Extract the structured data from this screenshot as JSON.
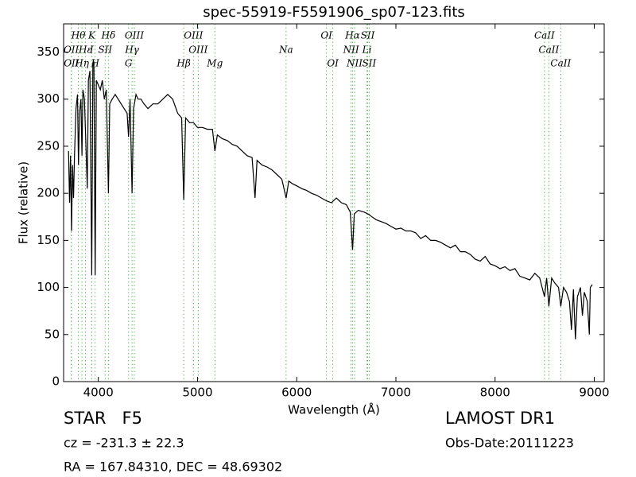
{
  "chart_data": {
    "type": "line",
    "title": "spec-55919-F5591906_sp07-123.fits",
    "xlabel": "Wavelength (Å)",
    "ylabel": "Flux (relative)",
    "color": "#000000",
    "line_color": "#66bb66",
    "xlim": [
      3650,
      9100
    ],
    "ylim": [
      0,
      380
    ],
    "xticks": [
      4000,
      5000,
      6000,
      7000,
      8000,
      9000
    ],
    "yticks": [
      0,
      50,
      100,
      150,
      200,
      250,
      300,
      350
    ],
    "x": [
      3700,
      3710,
      3720,
      3730,
      3740,
      3750,
      3760,
      3775,
      3790,
      3800,
      3810,
      3825,
      3835,
      3845,
      3860,
      3875,
      3889,
      3900,
      3915,
      3934,
      3945,
      3955,
      3968,
      3980,
      4000,
      4020,
      4040,
      4060,
      4080,
      4102,
      4115,
      4140,
      4170,
      4200,
      4230,
      4260,
      4290,
      4305,
      4320,
      4340,
      4355,
      4380,
      4400,
      4430,
      4460,
      4500,
      4550,
      4600,
      4650,
      4700,
      4750,
      4800,
      4840,
      4861,
      4880,
      4920,
      4960,
      5000,
      5050,
      5100,
      5150,
      5175,
      5200,
      5250,
      5300,
      5350,
      5400,
      5450,
      5500,
      5550,
      5580,
      5600,
      5650,
      5700,
      5750,
      5800,
      5850,
      5893,
      5920,
      5960,
      6000,
      6050,
      6100,
      6150,
      6200,
      6250,
      6300,
      6350,
      6400,
      6450,
      6500,
      6540,
      6563,
      6580,
      6620,
      6680,
      6720,
      6760,
      6800,
      6850,
      6900,
      6950,
      7000,
      7050,
      7100,
      7150,
      7200,
      7250,
      7300,
      7350,
      7400,
      7450,
      7500,
      7550,
      7600,
      7650,
      7700,
      7750,
      7800,
      7850,
      7900,
      7950,
      8000,
      8050,
      8100,
      8150,
      8200,
      8250,
      8300,
      8350,
      8400,
      8450,
      8498,
      8520,
      8542,
      8570,
      8600,
      8640,
      8662,
      8690,
      8720,
      8750,
      8770,
      8790,
      8810,
      8830,
      8860,
      8880,
      8900,
      8930,
      8950,
      8960,
      8980
    ],
    "values": [
      245,
      190,
      240,
      160,
      230,
      195,
      240,
      290,
      305,
      230,
      285,
      300,
      240,
      310,
      300,
      250,
      205,
      320,
      330,
      113,
      335,
      340,
      113,
      320,
      315,
      310,
      320,
      300,
      310,
      200,
      295,
      300,
      305,
      300,
      295,
      290,
      285,
      260,
      300,
      200,
      290,
      305,
      300,
      300,
      295,
      290,
      295,
      295,
      300,
      305,
      300,
      285,
      280,
      193,
      280,
      275,
      275,
      270,
      270,
      268,
      268,
      245,
      262,
      258,
      256,
      252,
      250,
      245,
      240,
      238,
      195,
      235,
      230,
      228,
      225,
      220,
      215,
      195,
      213,
      210,
      208,
      205,
      203,
      200,
      198,
      195,
      192,
      190,
      195,
      190,
      188,
      180,
      140,
      178,
      182,
      180,
      178,
      175,
      172,
      170,
      168,
      165,
      162,
      163,
      160,
      160,
      158,
      152,
      155,
      150,
      150,
      148,
      145,
      142,
      145,
      138,
      138,
      135,
      130,
      128,
      133,
      125,
      123,
      120,
      122,
      118,
      120,
      112,
      110,
      108,
      115,
      110,
      90,
      110,
      80,
      110,
      105,
      100,
      80,
      100,
      95,
      85,
      55,
      98,
      45,
      90,
      100,
      70,
      95,
      85,
      50,
      100,
      103
    ],
    "line_labels": [
      [
        {
          "label": "Hθ",
          "wavelength": 3798
        },
        {
          "label": "K",
          "wavelength": 3934
        },
        {
          "label": "Hδ",
          "wavelength": 4102
        },
        {
          "label": "OIII",
          "wavelength": 4363
        },
        {
          "label": "OIII",
          "wavelength": 4959
        },
        {
          "label": "OI",
          "wavelength": 6300
        },
        {
          "label": "Hα",
          "wavelength": 6563
        },
        {
          "label": "SII",
          "wavelength": 6716
        },
        {
          "label": "CaII",
          "wavelength": 8498
        }
      ],
      [
        {
          "label": "OII",
          "wavelength": 3727
        },
        {
          "label": "Hε",
          "wavelength": 3870
        },
        {
          "label": "I",
          "wavelength": 3933
        },
        {
          "label": "SII",
          "wavelength": 4069
        },
        {
          "label": "Hγ",
          "wavelength": 4340
        },
        {
          "label": "OIII",
          "wavelength": 5007
        },
        {
          "label": "Na",
          "wavelength": 5893
        },
        {
          "label": "NII",
          "wavelength": 6548
        },
        {
          "label": "Li",
          "wavelength": 6708
        },
        {
          "label": "CaII",
          "wavelength": 8542
        }
      ],
      [
        {
          "label": "OII",
          "wavelength": 3729
        },
        {
          "label": "Hη",
          "wavelength": 3835
        },
        {
          "label": "H",
          "wavelength": 3968
        },
        {
          "label": "G",
          "wavelength": 4305
        },
        {
          "label": "Hβ",
          "wavelength": 4861
        },
        {
          "label": "Mg",
          "wavelength": 5175
        },
        {
          "label": "OI",
          "wavelength": 6364
        },
        {
          "label": "NII",
          "wavelength": 6583
        },
        {
          "label": "SII",
          "wavelength": 6731
        },
        {
          "label": "CaII",
          "wavelength": 8662
        }
      ]
    ],
    "annotations": {
      "object": "STAR   F5",
      "cz": "cz = -231.3 ± 22.3",
      "coords": "RA = 167.84310, DEC = 48.69302",
      "survey": "LAMOST DR1",
      "obs_date": "Obs-Date:20111223"
    }
  }
}
